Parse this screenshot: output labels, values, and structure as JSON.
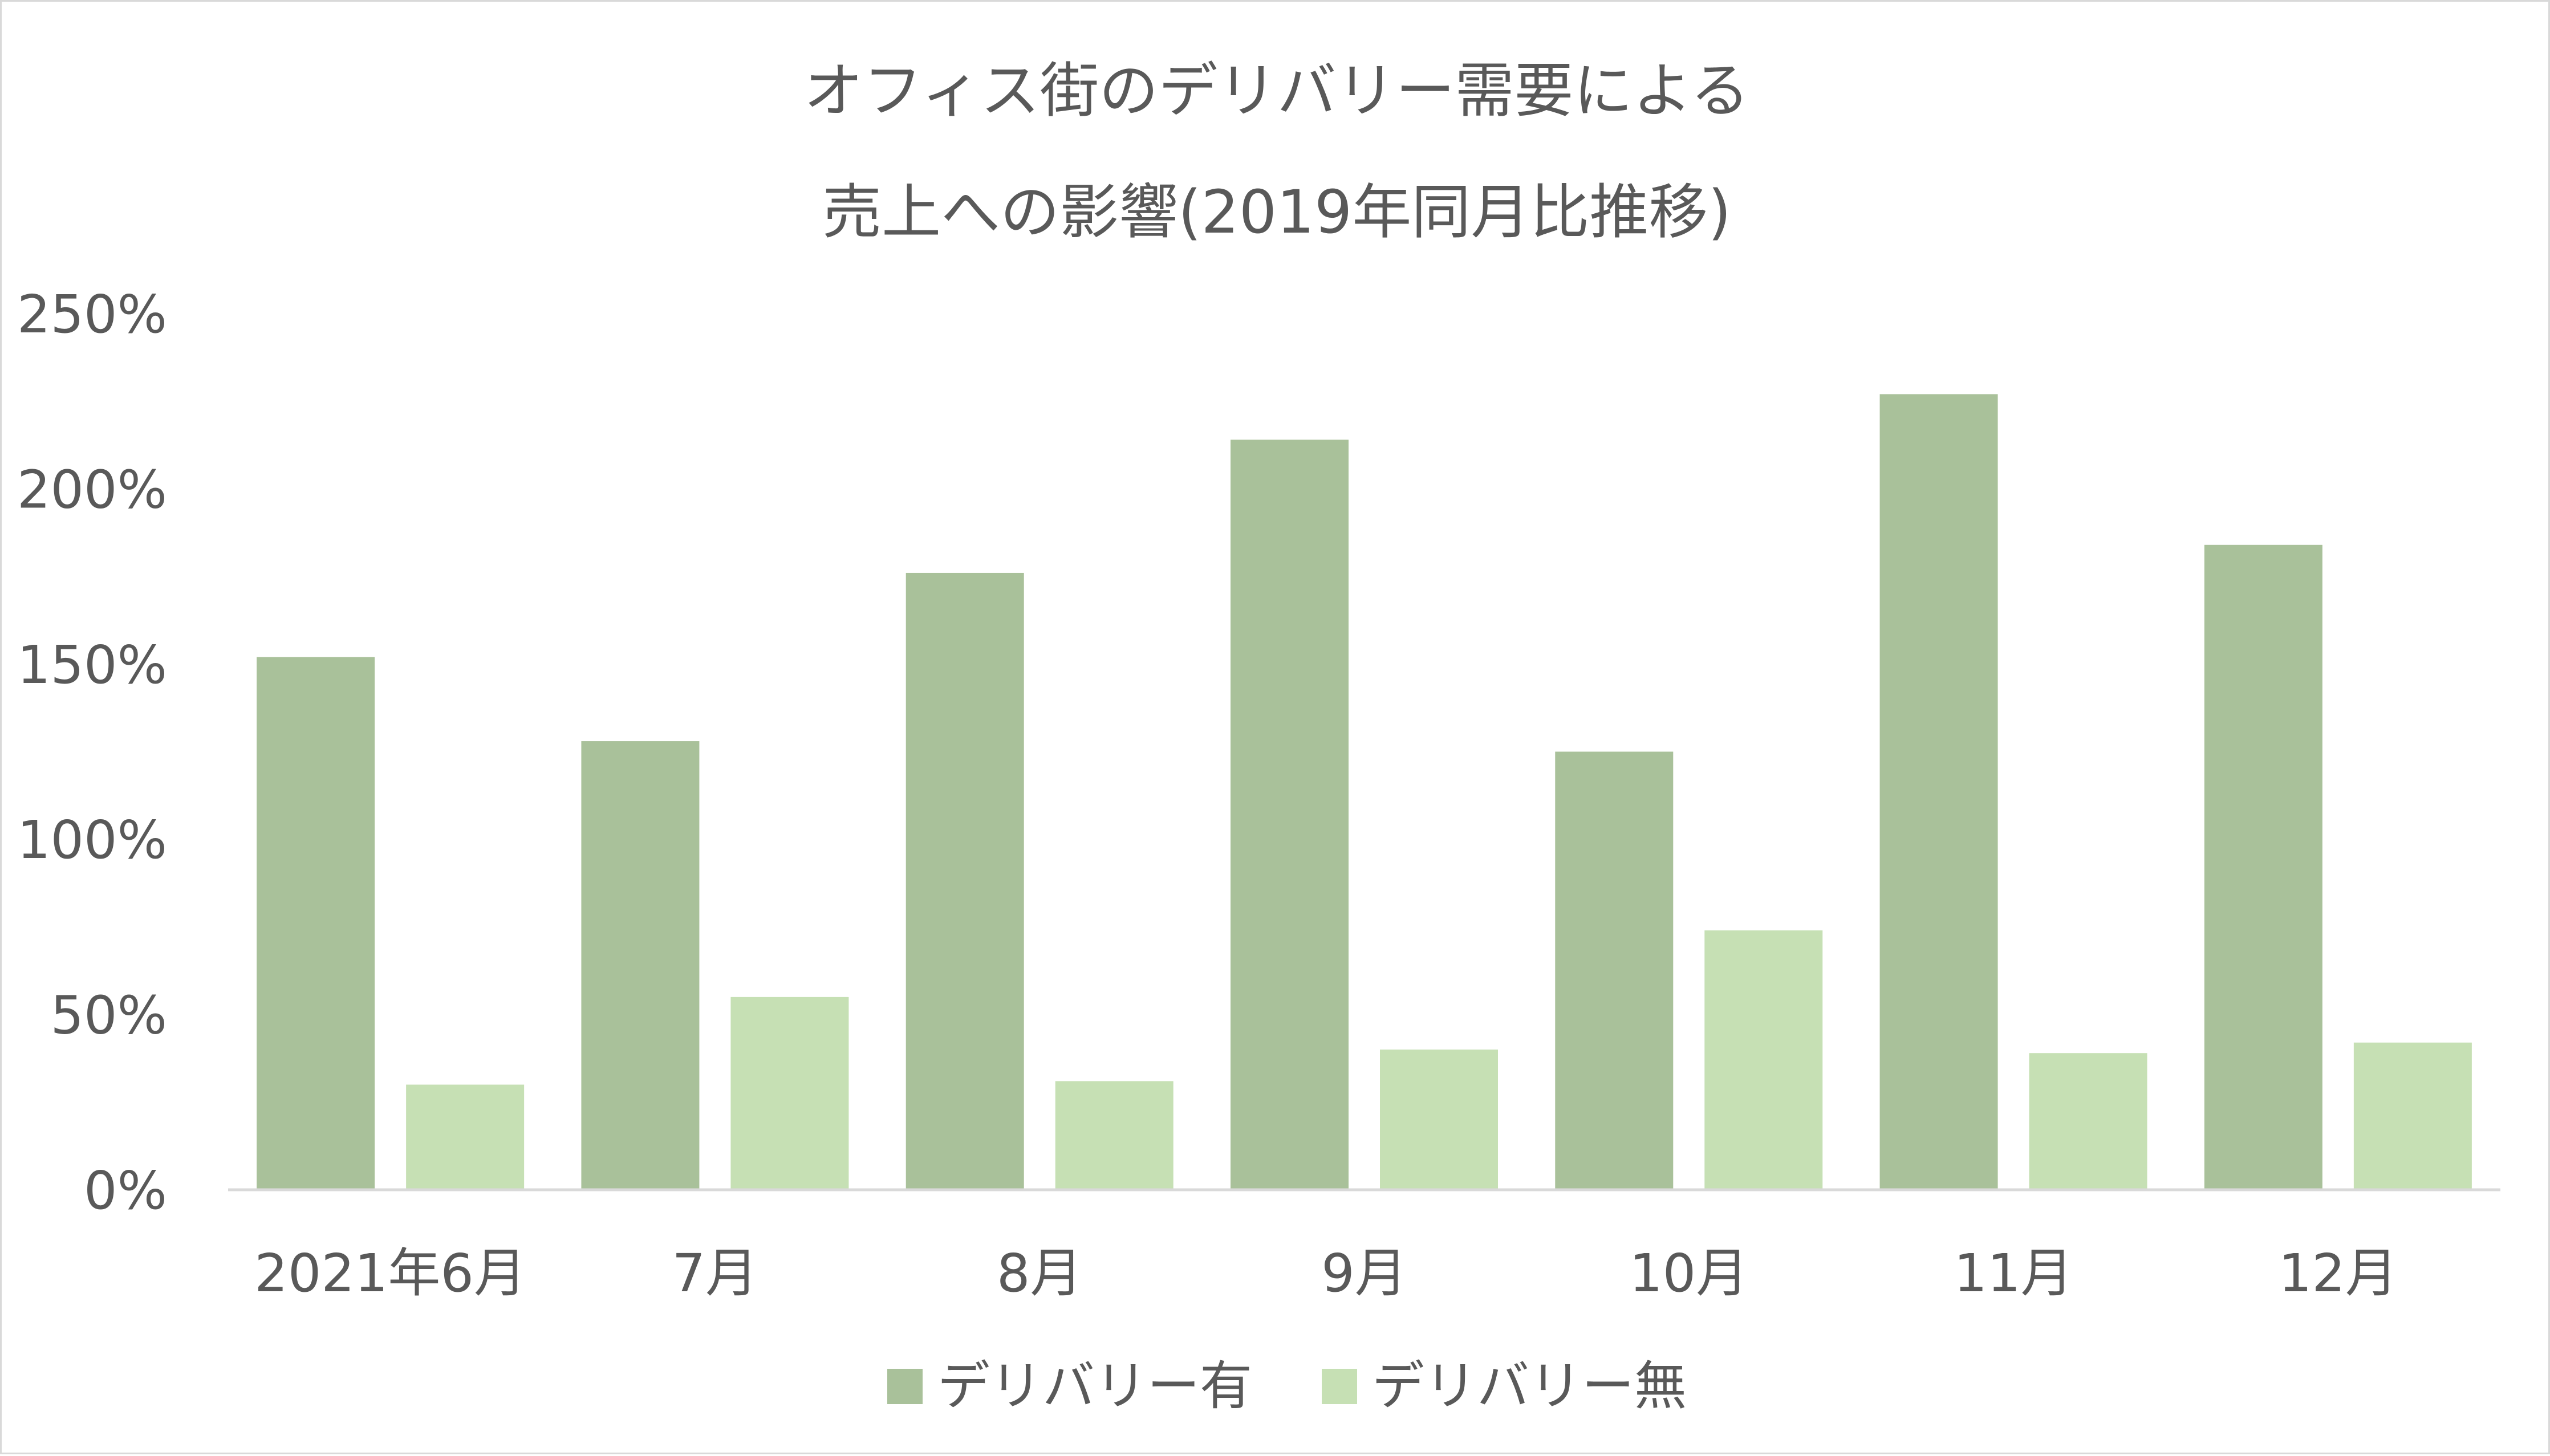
{
  "chart_data": {
    "type": "bar",
    "title_lines": [
      "オフィス街のデリバリー需要による",
      "売上への影響(2019年同月比推移)"
    ],
    "categories": [
      "2021年6月",
      "7月",
      "8月",
      "9月",
      "10月",
      "11月",
      "12月"
    ],
    "series": [
      {
        "name": "デリバリー有",
        "color": "#a9c19a",
        "values": [
          152,
          128,
          176,
          214,
          125,
          227,
          184
        ]
      },
      {
        "name": "デリバリー無",
        "color": "#c6e0b4",
        "values": [
          30,
          55,
          31,
          40,
          74,
          39,
          42
        ]
      }
    ],
    "ylim": [
      0,
      250
    ],
    "yticks": [
      0,
      50,
      100,
      150,
      200,
      250
    ],
    "ytick_labels": [
      "0%",
      "50%",
      "100%",
      "150%",
      "200%",
      "250%"
    ],
    "grid": false,
    "legend_position": "bottom",
    "axis_color": "#d9d9d9",
    "text_color": "#595959"
  }
}
